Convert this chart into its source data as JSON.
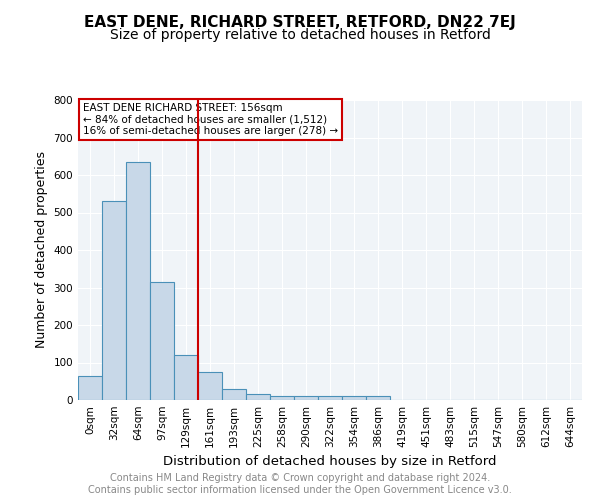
{
  "title": "EAST DENE, RICHARD STREET, RETFORD, DN22 7EJ",
  "subtitle": "Size of property relative to detached houses in Retford",
  "xlabel": "Distribution of detached houses by size in Retford",
  "ylabel": "Number of detached properties",
  "categories": [
    "0sqm",
    "32sqm",
    "64sqm",
    "97sqm",
    "129sqm",
    "161sqm",
    "193sqm",
    "225sqm",
    "258sqm",
    "290sqm",
    "322sqm",
    "354sqm",
    "386sqm",
    "419sqm",
    "451sqm",
    "483sqm",
    "515sqm",
    "547sqm",
    "580sqm",
    "612sqm",
    "644sqm"
  ],
  "values": [
    65,
    530,
    635,
    315,
    120,
    75,
    30,
    15,
    10,
    10,
    10,
    10,
    10,
    0,
    0,
    0,
    0,
    0,
    0,
    0,
    0
  ],
  "bar_color": "#c8d8e8",
  "bar_edge_color": "#4a90b8",
  "vline_x": 4.5,
  "vline_color": "#cc0000",
  "annotation_lines": [
    "EAST DENE RICHARD STREET: 156sqm",
    "← 84% of detached houses are smaller (1,512)",
    "16% of semi-detached houses are larger (278) →"
  ],
  "annotation_box_color": "#cc0000",
  "ylim": [
    0,
    800
  ],
  "yticks": [
    0,
    100,
    200,
    300,
    400,
    500,
    600,
    700,
    800
  ],
  "footer_text": "Contains HM Land Registry data © Crown copyright and database right 2024.\nContains public sector information licensed under the Open Government Licence v3.0.",
  "background_color": "#f0f4f8",
  "grid_color": "#ffffff",
  "title_fontsize": 11,
  "subtitle_fontsize": 10,
  "axis_label_fontsize": 9,
  "tick_fontsize": 7.5,
  "footer_fontsize": 7
}
